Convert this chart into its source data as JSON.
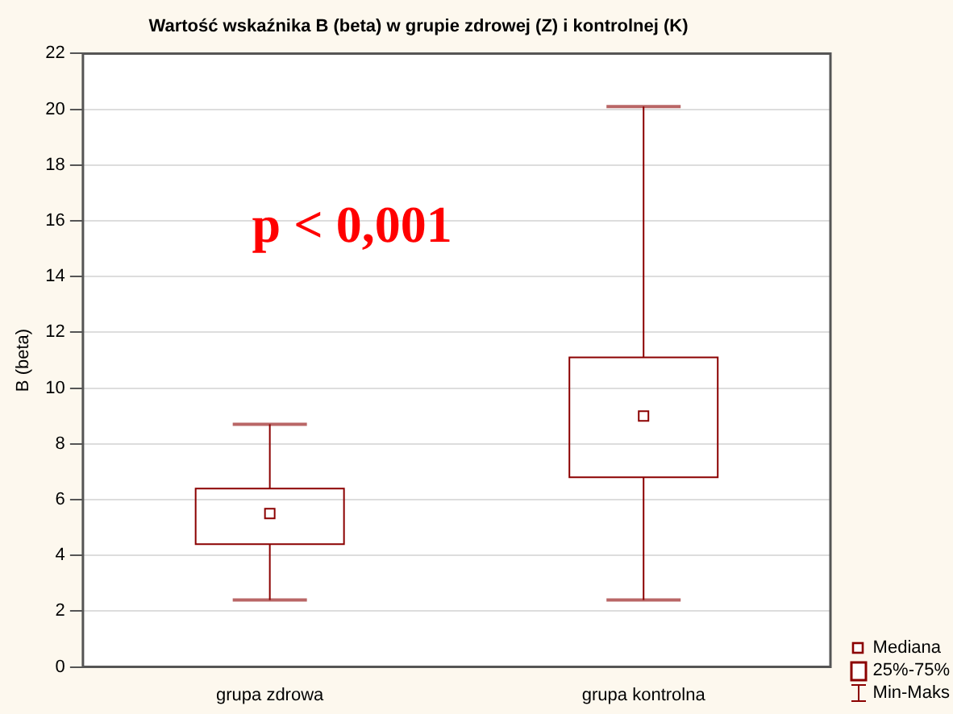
{
  "chart_data": {
    "type": "box",
    "title": "Wartość wskaźnika B (beta) w grupie zdrowej (Z) i kontrolnej (K)",
    "ylabel": "B (beta)",
    "categories": [
      "grupa zdrowa",
      "grupa kontrolna"
    ],
    "color": "#8b0000",
    "boxes": [
      {
        "low": 2.4,
        "q1": 4.4,
        "median": 5.5,
        "q3": 6.4,
        "high": 8.7
      },
      {
        "low": 2.4,
        "q1": 6.8,
        "median": 9.0,
        "q3": 11.1,
        "high": 20.1
      }
    ],
    "ylim": [
      0,
      22
    ],
    "yticks": [
      0,
      2,
      4,
      6,
      8,
      10,
      12,
      14,
      16,
      18,
      20,
      22
    ],
    "grid": "y",
    "annotations": [
      "p < 0,001",
      "Mediana",
      "25%-75%",
      "Min-Maks"
    ]
  }
}
